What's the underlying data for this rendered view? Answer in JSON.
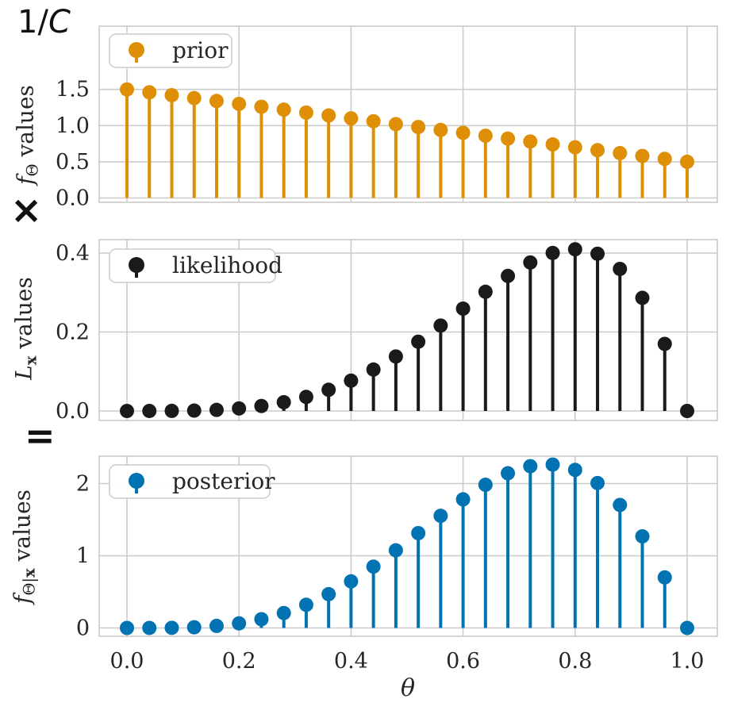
{
  "annotations": {
    "normalizer_parts": [
      {
        "text": "1/"
      },
      {
        "text": "C",
        "italic": true
      }
    ],
    "normalizer": "1/C",
    "times": "×",
    "equals": "="
  },
  "colors": {
    "prior": "#DE8F05",
    "likelihood": "#1A1A1A",
    "posterior": "#0173B2",
    "grid": "#cccccc",
    "spine": "#c9c9c9",
    "text": "#262626",
    "background": "#ffffff"
  },
  "chart_data": {
    "type": "stem",
    "layout": "3 stacked subplots sharing x-axis",
    "grid": true,
    "legend_position": "upper left",
    "marker": "o",
    "baseline": 0,
    "xlabel": "θ",
    "xticks": [
      "0.0",
      "0.2",
      "0.4",
      "0.6",
      "0.8",
      "1.0"
    ],
    "xlim": [
      -0.05,
      1.05
    ],
    "x": [
      0.0,
      0.04,
      0.08,
      0.12,
      0.16,
      0.2,
      0.24,
      0.28,
      0.32,
      0.36,
      0.4,
      0.44,
      0.48,
      0.52,
      0.56,
      0.6,
      0.64,
      0.68,
      0.72,
      0.76,
      0.8,
      0.84,
      0.88,
      0.92,
      0.96,
      1.0
    ],
    "subplots": [
      {
        "legend": "prior",
        "color": "#DE8F05",
        "ylabel": "f_Θ values",
        "ylabel_parts": [
          {
            "text": "f",
            "italic": true
          },
          {
            "text": "Θ",
            "sub": true
          },
          {
            "text": " values"
          }
        ],
        "ytick_labels": [
          "0.0",
          "0.5",
          "1.0",
          "1.5"
        ],
        "ytick_values": [
          0,
          0.5,
          1.0,
          1.5
        ],
        "ylim": [
          -0.06,
          2.37
        ],
        "values": [
          1.5,
          1.46,
          1.42,
          1.38,
          1.34,
          1.3,
          1.26,
          1.22,
          1.18,
          1.14,
          1.1,
          1.06,
          1.02,
          0.98,
          0.94,
          0.9,
          0.86,
          0.82,
          0.78,
          0.74,
          0.7,
          0.66,
          0.62,
          0.58,
          0.54,
          0.5
        ]
      },
      {
        "legend": "likelihood",
        "color": "#1A1A1A",
        "ylabel": "L_x values",
        "ylabel_parts": [
          {
            "text": "L",
            "italic": true
          },
          {
            "text": "x",
            "sub": true,
            "bold": true
          },
          {
            "text": " values"
          }
        ],
        "ytick_labels": [
          "0.0",
          "0.2",
          "0.4"
        ],
        "ytick_values": [
          0,
          0.2,
          0.4
        ],
        "ylim": [
          -0.02,
          0.43
        ],
        "values": [
          0,
          1e-05,
          0.00019,
          0.00091,
          0.00275,
          0.0064,
          0.01261,
          0.02213,
          0.03565,
          0.05375,
          0.0768,
          0.10495,
          0.13802,
          0.17548,
          0.21636,
          0.2592,
          0.30199,
          0.3421,
          0.37623,
          0.40035,
          0.4096,
          0.3983,
          0.35982,
          0.28656,
          0.16987,
          0
        ]
      },
      {
        "legend": "posterior",
        "color": "#0173B2",
        "ylabel": "f_Θ|x values",
        "ylabel_parts": [
          {
            "text": "f",
            "italic": true
          },
          {
            "text": "Θ|",
            "sub": true
          },
          {
            "text": "x",
            "sub": true,
            "bold": true
          },
          {
            "text": " values"
          }
        ],
        "ytick_labels": [
          "0",
          "1",
          "2"
        ],
        "ytick_values": [
          0,
          1,
          2
        ],
        "ylim": [
          -0.12,
          2.38
        ],
        "values": [
          0,
          0.0001,
          0.002,
          0.0096,
          0.0282,
          0.0635,
          0.1213,
          0.2062,
          0.3213,
          0.4679,
          0.6451,
          0.8495,
          1.0751,
          1.3132,
          1.5531,
          1.7815,
          1.9832,
          2.1422,
          2.2409,
          2.2624,
          2.1895,
          2.0075,
          1.7035,
          1.2692,
          0.7004,
          0
        ]
      }
    ]
  }
}
